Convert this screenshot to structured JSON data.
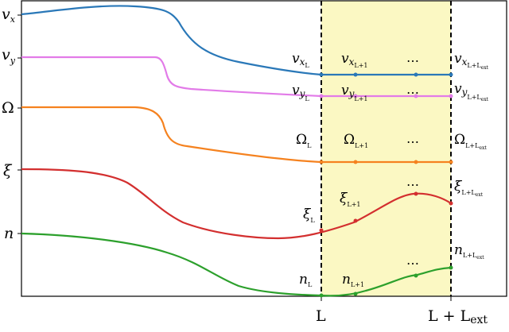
{
  "diagram": {
    "region_fill": "#fbf8c3",
    "x_ticks": [
      {
        "main": "L",
        "sub": ""
      },
      {
        "main": "L + L",
        "sub": "ext"
      }
    ],
    "left_labels": [
      {
        "main": "v",
        "sub": "x"
      },
      {
        "main": "v",
        "sub": "y"
      },
      {
        "main": "Ω",
        "sub": ""
      },
      {
        "main": "ξ",
        "sub": ""
      },
      {
        "main": "n",
        "sub": ""
      }
    ],
    "series": [
      {
        "id": "vx",
        "color": "#2a78b8",
        "labels": [
          {
            "main": "v",
            "sub": "x",
            "sub2": "L"
          },
          {
            "main": "v",
            "sub": "x",
            "sub2": "L+1"
          },
          {
            "main": "…",
            "sub": "",
            "sub2": ""
          },
          {
            "main": "v",
            "sub": "x",
            "sub2": "L+L",
            "sub3": "ext"
          }
        ]
      },
      {
        "id": "vy",
        "color": "#e27be8",
        "labels": [
          {
            "main": "v",
            "sub": "y",
            "sub2": "L"
          },
          {
            "main": "v",
            "sub": "y",
            "sub2": "L+1"
          },
          {
            "main": "…",
            "sub": "",
            "sub2": ""
          },
          {
            "main": "v",
            "sub": "y",
            "sub2": "L+L",
            "sub3": "ext"
          }
        ]
      },
      {
        "id": "omega",
        "color": "#f5821f",
        "labels": [
          {
            "main": "Ω",
            "sub": "L"
          },
          {
            "main": "Ω",
            "sub": "L+1"
          },
          {
            "main": "…",
            "sub": ""
          },
          {
            "main": "Ω",
            "sub": "L+L",
            "sub3": "ext"
          }
        ]
      },
      {
        "id": "xi",
        "color": "#d32f2f",
        "labels": [
          {
            "main": "ξ",
            "sub": "L"
          },
          {
            "main": "ξ",
            "sub": "L+1"
          },
          {
            "main": "…",
            "sub": ""
          },
          {
            "main": "ξ",
            "sub": "L+L",
            "sub3": "ext"
          }
        ]
      },
      {
        "id": "n",
        "color": "#2ca02c",
        "labels": [
          {
            "main": "n",
            "sub": "L"
          },
          {
            "main": "n",
            "sub": "L+1"
          },
          {
            "main": "…",
            "sub": ""
          },
          {
            "main": "n",
            "sub": "L+L",
            "sub3": "ext"
          }
        ]
      }
    ]
  }
}
